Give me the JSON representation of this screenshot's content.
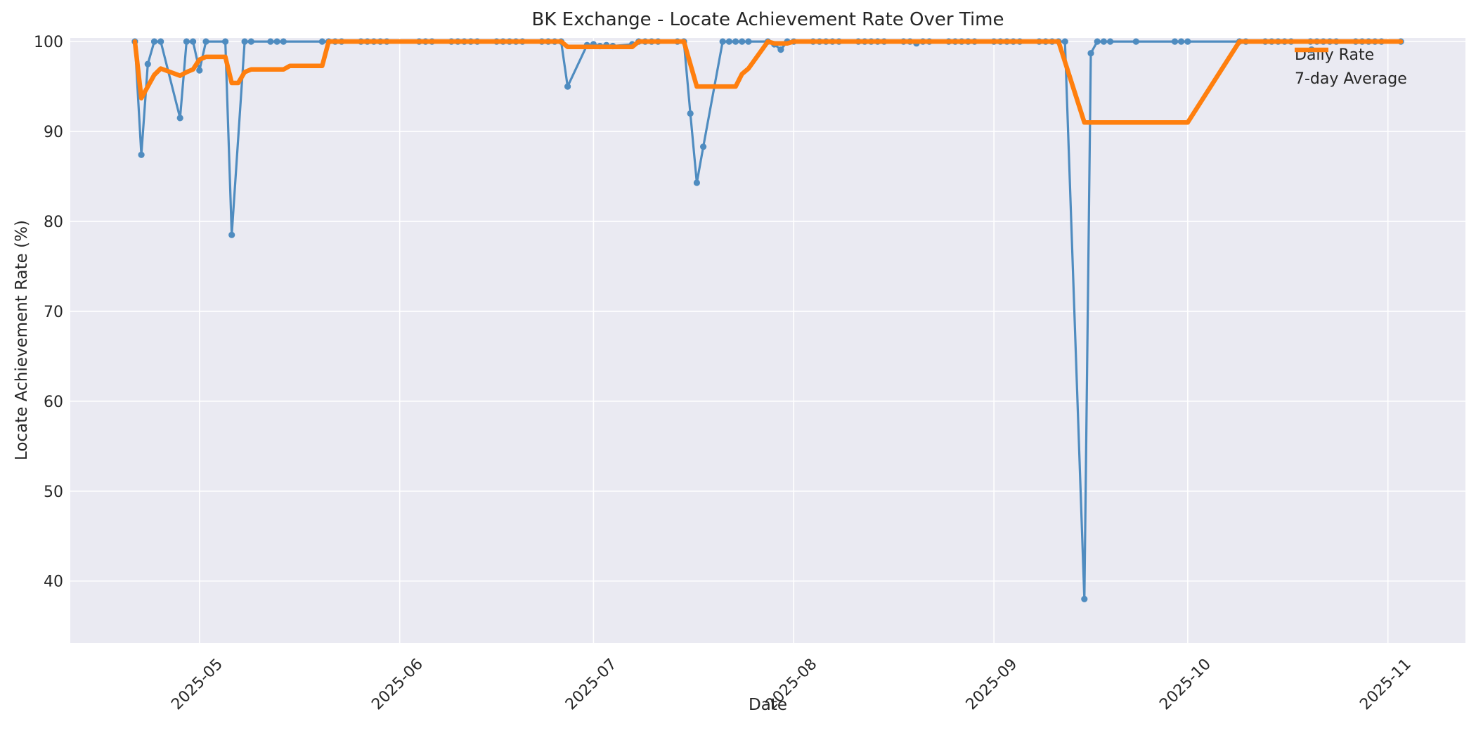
{
  "title": "BK Exchange - Locate Achievement Rate Over Time",
  "x_axis_label": "Date",
  "y_axis_label": "Locate Achievement Rate (%)",
  "legend": {
    "position": "upper right",
    "items": [
      {
        "label": "Daily Rate",
        "swatch": "line-with-marker"
      },
      {
        "label": "7-day Average",
        "swatch": "thick-line"
      }
    ]
  },
  "colors": {
    "daily": "#4f8cc0",
    "average": "#ff7f0e",
    "plot_bg": "#eaeaf2",
    "grid": "#ffffff",
    "text": "#262626",
    "figure_bg": "#ffffff"
  },
  "chart_data": {
    "type": "line",
    "title": "BK Exchange - Locate Achievement Rate Over Time",
    "xlabel": "Date",
    "ylabel": "Locate Achievement Rate (%)",
    "grid": true,
    "legend_position": "upper right",
    "x_tick_labels": [
      "2025-05",
      "2025-06",
      "2025-07",
      "2025-08",
      "2025-09",
      "2025-10",
      "2025-11"
    ],
    "x_tick_dates": [
      "2025-05-01",
      "2025-06-01",
      "2025-07-01",
      "2025-08-01",
      "2025-09-01",
      "2025-10-01",
      "2025-11-01"
    ],
    "y_ticks": [
      40,
      50,
      60,
      70,
      80,
      90,
      100
    ],
    "ylim": [
      33.1,
      100.4
    ],
    "xlim_dates": [
      "2025-04-11",
      "2025-11-13"
    ],
    "series": [
      {
        "name": "Daily Rate",
        "style": "line+marker",
        "points": [
          [
            "2025-04-21",
            100
          ],
          [
            "2025-04-22",
            87.4
          ],
          [
            "2025-04-23",
            97.5
          ],
          [
            "2025-04-24",
            100
          ],
          [
            "2025-04-25",
            100
          ],
          [
            "2025-04-28",
            91.5
          ],
          [
            "2025-04-29",
            100
          ],
          [
            "2025-04-30",
            100
          ],
          [
            "2025-05-01",
            96.8
          ],
          [
            "2025-05-02",
            100
          ],
          [
            "2025-05-05",
            100
          ],
          [
            "2025-05-06",
            78.5
          ],
          [
            "2025-05-08",
            100
          ],
          [
            "2025-05-09",
            100
          ],
          [
            "2025-05-12",
            100
          ],
          [
            "2025-05-13",
            100
          ],
          [
            "2025-05-14",
            100
          ],
          [
            "2025-05-20",
            100
          ],
          [
            "2025-05-21",
            100
          ],
          [
            "2025-05-22",
            100
          ],
          [
            "2025-05-23",
            100
          ],
          [
            "2025-05-26",
            100
          ],
          [
            "2025-05-27",
            100
          ],
          [
            "2025-05-28",
            100
          ],
          [
            "2025-05-29",
            100
          ],
          [
            "2025-05-30",
            100
          ],
          [
            "2025-06-04",
            100
          ],
          [
            "2025-06-05",
            100
          ],
          [
            "2025-06-06",
            100
          ],
          [
            "2025-06-09",
            100
          ],
          [
            "2025-06-10",
            100
          ],
          [
            "2025-06-11",
            100
          ],
          [
            "2025-06-12",
            100
          ],
          [
            "2025-06-13",
            100
          ],
          [
            "2025-06-16",
            100
          ],
          [
            "2025-06-17",
            100
          ],
          [
            "2025-06-18",
            100
          ],
          [
            "2025-06-19",
            100
          ],
          [
            "2025-06-20",
            100
          ],
          [
            "2025-06-23",
            100
          ],
          [
            "2025-06-24",
            100
          ],
          [
            "2025-06-25",
            100
          ],
          [
            "2025-06-26",
            100
          ],
          [
            "2025-06-27",
            95.0
          ],
          [
            "2025-06-30",
            99.6
          ],
          [
            "2025-07-01",
            99.7
          ],
          [
            "2025-07-02",
            99.5
          ],
          [
            "2025-07-03",
            99.6
          ],
          [
            "2025-07-04",
            99.5
          ],
          [
            "2025-07-07",
            99.7
          ],
          [
            "2025-07-08",
            100
          ],
          [
            "2025-07-09",
            100
          ],
          [
            "2025-07-10",
            100
          ],
          [
            "2025-07-11",
            100
          ],
          [
            "2025-07-14",
            100
          ],
          [
            "2025-07-15",
            100
          ],
          [
            "2025-07-16",
            92.0
          ],
          [
            "2025-07-17",
            84.3
          ],
          [
            "2025-07-18",
            88.3
          ],
          [
            "2025-07-21",
            100
          ],
          [
            "2025-07-22",
            100
          ],
          [
            "2025-07-23",
            100
          ],
          [
            "2025-07-24",
            100
          ],
          [
            "2025-07-25",
            100
          ],
          [
            "2025-07-28",
            100
          ],
          [
            "2025-07-29",
            99.7
          ],
          [
            "2025-07-30",
            99.1
          ],
          [
            "2025-07-31",
            100
          ],
          [
            "2025-08-01",
            100
          ],
          [
            "2025-08-04",
            100
          ],
          [
            "2025-08-05",
            100
          ],
          [
            "2025-08-06",
            100
          ],
          [
            "2025-08-07",
            100
          ],
          [
            "2025-08-08",
            100
          ],
          [
            "2025-08-11",
            100
          ],
          [
            "2025-08-12",
            100
          ],
          [
            "2025-08-13",
            100
          ],
          [
            "2025-08-14",
            100
          ],
          [
            "2025-08-15",
            100
          ],
          [
            "2025-08-18",
            100
          ],
          [
            "2025-08-19",
            100
          ],
          [
            "2025-08-20",
            99.8
          ],
          [
            "2025-08-21",
            100
          ],
          [
            "2025-08-22",
            100
          ],
          [
            "2025-08-25",
            100
          ],
          [
            "2025-08-26",
            100
          ],
          [
            "2025-08-27",
            100
          ],
          [
            "2025-08-28",
            100
          ],
          [
            "2025-08-29",
            100
          ],
          [
            "2025-09-01",
            100
          ],
          [
            "2025-09-02",
            100
          ],
          [
            "2025-09-03",
            100
          ],
          [
            "2025-09-04",
            100
          ],
          [
            "2025-09-05",
            100
          ],
          [
            "2025-09-08",
            100
          ],
          [
            "2025-09-09",
            100
          ],
          [
            "2025-09-10",
            100
          ],
          [
            "2025-09-11",
            100
          ],
          [
            "2025-09-12",
            100
          ],
          [
            "2025-09-15",
            38.0
          ],
          [
            "2025-09-16",
            98.7
          ],
          [
            "2025-09-17",
            100
          ],
          [
            "2025-09-18",
            100
          ],
          [
            "2025-09-19",
            100
          ],
          [
            "2025-09-23",
            100
          ],
          [
            "2025-09-29",
            100
          ],
          [
            "2025-09-30",
            100
          ],
          [
            "2025-10-01",
            100
          ],
          [
            "2025-10-09",
            100
          ],
          [
            "2025-10-10",
            100
          ],
          [
            "2025-10-13",
            100
          ],
          [
            "2025-10-14",
            100
          ],
          [
            "2025-10-15",
            100
          ],
          [
            "2025-10-16",
            100
          ],
          [
            "2025-10-17",
            100
          ],
          [
            "2025-10-20",
            100
          ],
          [
            "2025-10-21",
            100
          ],
          [
            "2025-10-22",
            100
          ],
          [
            "2025-10-23",
            100
          ],
          [
            "2025-10-24",
            100
          ],
          [
            "2025-10-27",
            100
          ],
          [
            "2025-10-28",
            100
          ],
          [
            "2025-10-29",
            100
          ],
          [
            "2025-10-30",
            100
          ],
          [
            "2025-10-31",
            100
          ],
          [
            "2025-11-03",
            100
          ]
        ]
      },
      {
        "name": "7-day Average",
        "style": "thick-line",
        "points": [
          [
            "2025-04-21",
            100
          ],
          [
            "2025-04-22",
            93.7
          ],
          [
            "2025-04-23",
            95.0
          ],
          [
            "2025-04-24",
            96.3
          ],
          [
            "2025-04-25",
            97.0
          ],
          [
            "2025-04-28",
            96.2
          ],
          [
            "2025-04-29",
            96.6
          ],
          [
            "2025-04-30",
            96.9
          ],
          [
            "2025-05-01",
            98.0
          ],
          [
            "2025-05-02",
            98.3
          ],
          [
            "2025-05-05",
            98.3
          ],
          [
            "2025-05-06",
            95.4
          ],
          [
            "2025-05-07",
            95.4
          ],
          [
            "2025-05-08",
            96.6
          ],
          [
            "2025-05-09",
            96.9
          ],
          [
            "2025-05-14",
            96.9
          ],
          [
            "2025-05-15",
            97.3
          ],
          [
            "2025-05-20",
            97.3
          ],
          [
            "2025-05-21",
            100
          ],
          [
            "2025-06-26",
            100
          ],
          [
            "2025-06-27",
            99.4
          ],
          [
            "2025-07-07",
            99.4
          ],
          [
            "2025-07-08",
            100
          ],
          [
            "2025-07-15",
            100
          ],
          [
            "2025-07-17",
            95.0
          ],
          [
            "2025-07-23",
            95.0
          ],
          [
            "2025-07-24",
            96.4
          ],
          [
            "2025-07-25",
            97.0
          ],
          [
            "2025-07-28",
            100
          ],
          [
            "2025-07-29",
            99.8
          ],
          [
            "2025-07-31",
            99.8
          ],
          [
            "2025-08-01",
            100
          ],
          [
            "2025-09-11",
            100
          ],
          [
            "2025-09-15",
            91.0
          ],
          [
            "2025-10-01",
            91.0
          ],
          [
            "2025-10-09",
            100
          ],
          [
            "2025-11-03",
            100
          ]
        ]
      }
    ]
  }
}
